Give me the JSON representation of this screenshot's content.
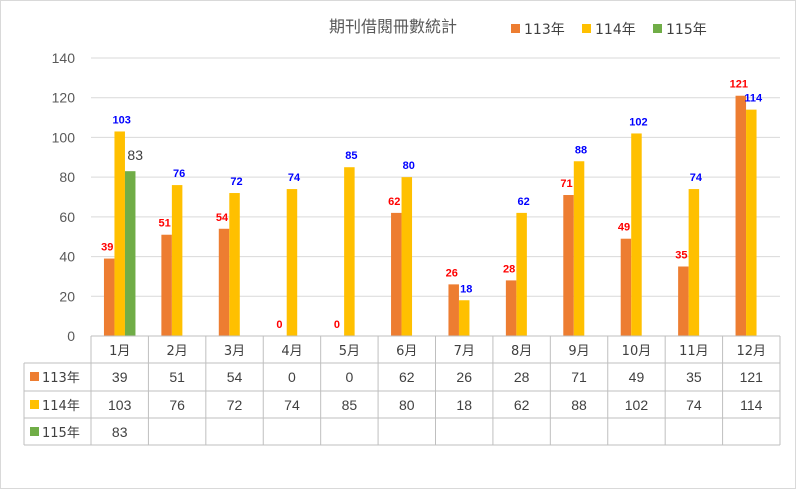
{
  "chart_data": {
    "type": "bar",
    "title": "期刊借閱冊數統計",
    "categories": [
      "1月",
      "2月",
      "3月",
      "4月",
      "5月",
      "6月",
      "7月",
      "8月",
      "9月",
      "10月",
      "11月",
      "12月"
    ],
    "series": [
      {
        "name": "113年",
        "color": "#ED7D31",
        "label_color": "#FF0000",
        "values": [
          39,
          51,
          54,
          0,
          0,
          62,
          26,
          28,
          71,
          49,
          35,
          121
        ]
      },
      {
        "name": "114年",
        "color": "#FFC000",
        "label_color": "#0000FF",
        "values": [
          103,
          76,
          72,
          74,
          85,
          80,
          18,
          62,
          88,
          102,
          74,
          114
        ]
      },
      {
        "name": "115年",
        "color": "#70AD47",
        "label_color": "#404040",
        "values": [
          83,
          null,
          null,
          null,
          null,
          null,
          null,
          null,
          null,
          null,
          null,
          null
        ]
      }
    ],
    "yticks": [
      "0",
      "20",
      "40",
      "60",
      "80",
      "100",
      "120",
      "140"
    ],
    "ylim": [
      0,
      140
    ],
    "grid": true,
    "legend_position": "top-right",
    "data_table": true
  }
}
